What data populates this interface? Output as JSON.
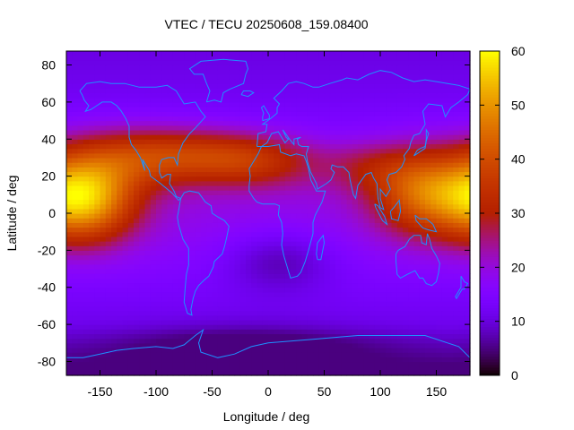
{
  "chart_data": {
    "type": "heatmap",
    "title": "VTEC / TECU 20250608_159.08400",
    "xlabel": "Longitude / deg",
    "ylabel": "Latitude / deg",
    "xlim": [
      -180,
      180
    ],
    "ylim": [
      -87.5,
      87.5
    ],
    "xticks": [
      -150,
      -100,
      -50,
      0,
      50,
      100,
      150
    ],
    "yticks": [
      -80,
      -60,
      -40,
      -20,
      0,
      20,
      40,
      60,
      80
    ],
    "colorbar": {
      "min": 0,
      "max": 60,
      "ticks": [
        0,
        10,
        20,
        30,
        40,
        50,
        60
      ],
      "palette": "black-purple-red-orange-yellow"
    },
    "grid": false,
    "coastlines": true,
    "coastline_color": "#1e90ff",
    "features": {
      "max_peak": {
        "lon": -165,
        "lat": 8,
        "value": 58
      },
      "secondary_peak": {
        "lon": 135,
        "lat": 12,
        "value": 42
      },
      "equatorial_band_lat": [
        -25,
        35
      ],
      "polar_min_value": 5
    }
  }
}
